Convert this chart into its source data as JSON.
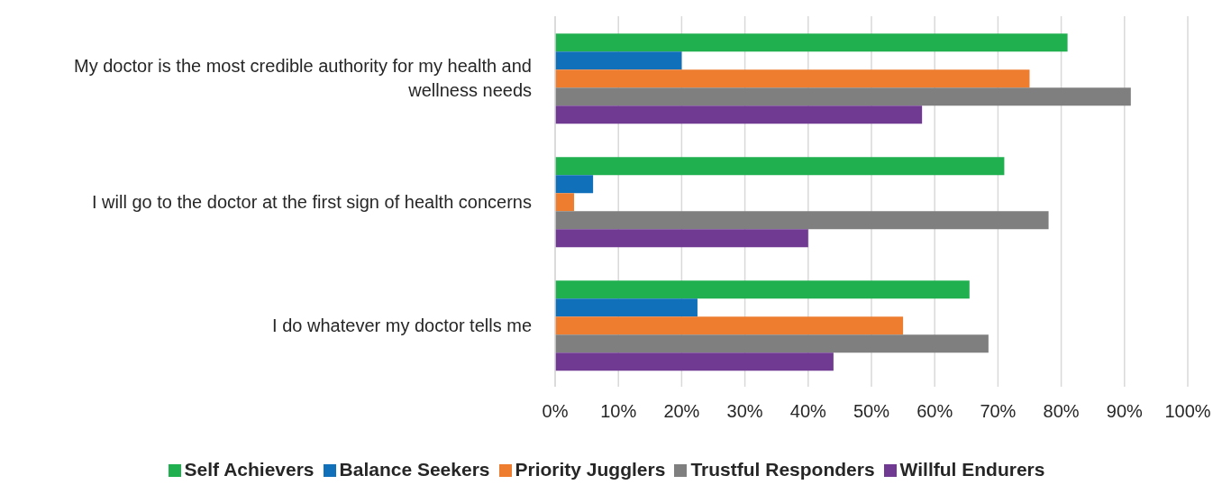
{
  "chart_data": {
    "type": "bar",
    "orientation": "horizontal",
    "categories": [
      "My doctor is the most credible authority for my health and wellness needs",
      "I will go to the doctor at the first sign of health concerns",
      "I do whatever my doctor tells me"
    ],
    "series": [
      {
        "name": "Self Achievers",
        "color": "#20b050",
        "values": [
          81,
          71,
          65.5
        ]
      },
      {
        "name": "Balance Seekers",
        "color": "#1070ba",
        "values": [
          20,
          6,
          22.5
        ]
      },
      {
        "name": "Priority Jugglers",
        "color": "#ee7d30",
        "values": [
          75,
          3,
          55
        ]
      },
      {
        "name": "Trustful Responders",
        "color": "#7f7f7f",
        "values": [
          91,
          78,
          68.5
        ]
      },
      {
        "name": "Willful Endurers",
        "color": "#703a93",
        "values": [
          58,
          40,
          44
        ]
      }
    ],
    "xlim": [
      0,
      100
    ],
    "xticks": [
      {
        "value": 0,
        "label": "0%"
      },
      {
        "value": 10,
        "label": "10%"
      },
      {
        "value": 20,
        "label": "20%"
      },
      {
        "value": 30,
        "label": "30%"
      },
      {
        "value": 40,
        "label": "40%"
      },
      {
        "value": 50,
        "label": "50%"
      },
      {
        "value": 60,
        "label": "60%"
      },
      {
        "value": 70,
        "label": "70%"
      },
      {
        "value": 80,
        "label": "80%"
      },
      {
        "value": 90,
        "label": "90%"
      },
      {
        "value": 100,
        "label": "100%"
      }
    ],
    "grid": "x",
    "legend": "bottom"
  }
}
